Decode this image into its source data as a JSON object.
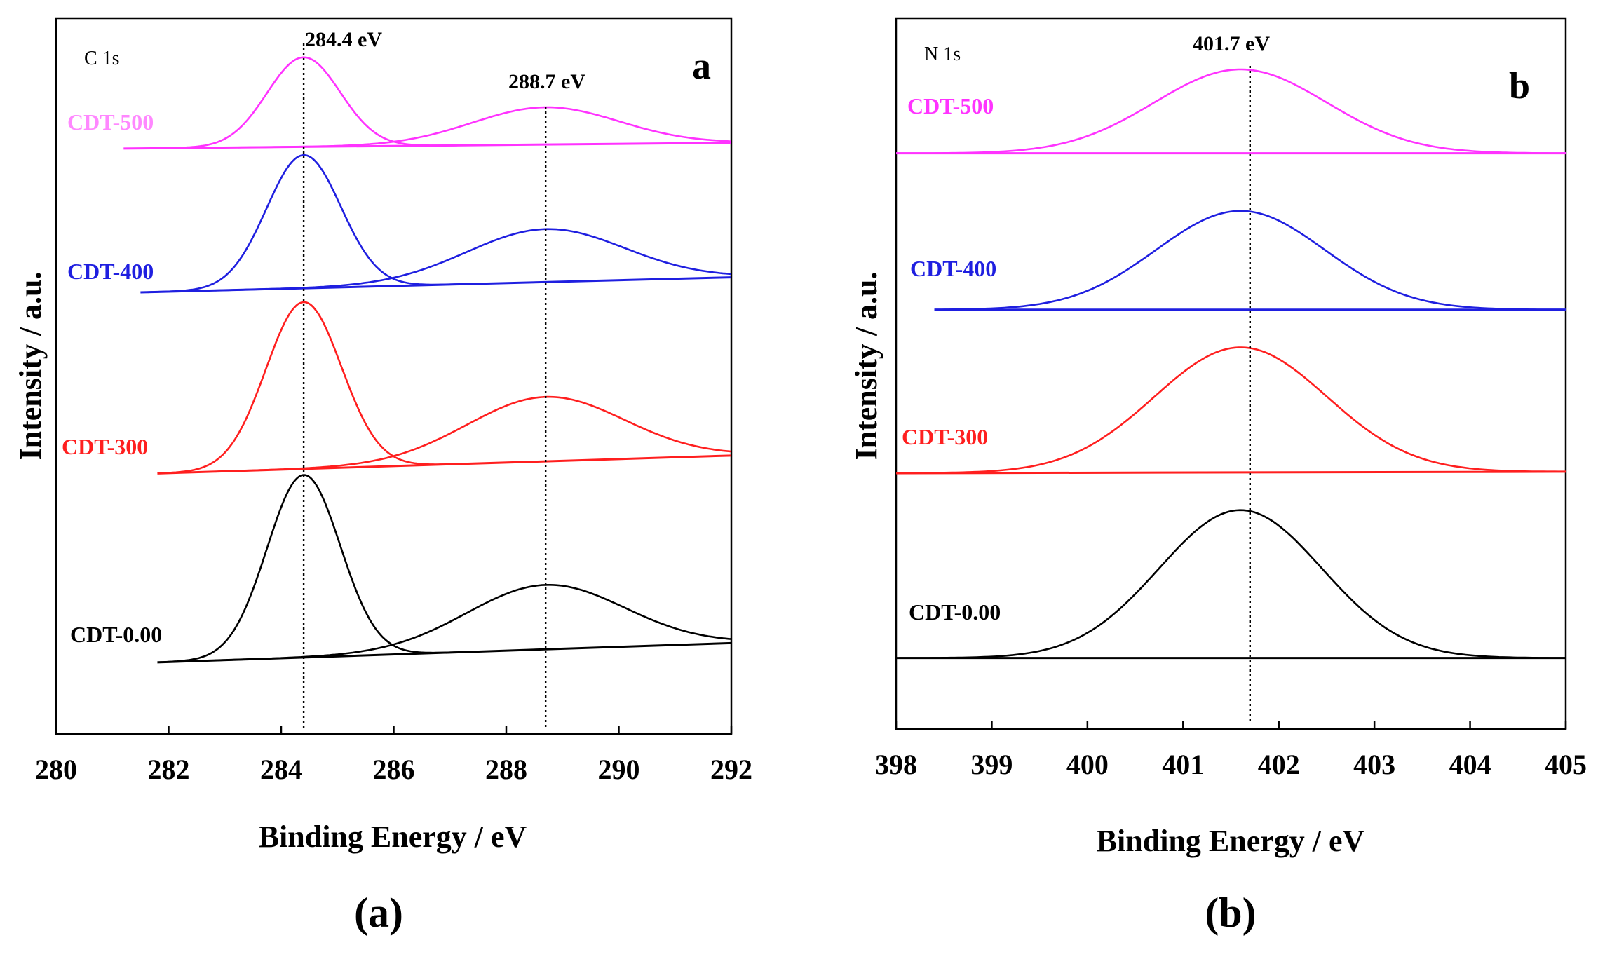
{
  "chart_data": [
    {
      "type": "line",
      "panel": "a",
      "title": "C 1s",
      "panel_letter": "a",
      "caption": "(a)",
      "xlabel": "Binding Energy / eV",
      "ylabel": "Intensity / a.u.",
      "xlim": [
        280,
        292
      ],
      "ylim": [
        0,
        1
      ],
      "xticks": [
        280,
        282,
        284,
        286,
        288,
        290,
        292
      ],
      "peak_markers": [
        {
          "x": 284.4,
          "label": "284.4 eV"
        },
        {
          "x": 288.7,
          "label": "288.7 eV"
        }
      ],
      "series": [
        {
          "name": "CDT-500",
          "color": "#ff33ff",
          "label_color": "#ff88ff",
          "baseline": [
            281.2,
            0.818,
            292,
            0.826
          ],
          "peaks": [
            {
              "center": 284.4,
              "height": 0.125,
              "width": 0.65
            },
            {
              "center": 288.7,
              "height": 0.052,
              "width": 1.3
            }
          ]
        },
        {
          "name": "CDT-400",
          "color": "#1f1fe0",
          "label_color": "#1f1fe0",
          "baseline": [
            281.5,
            0.617,
            292,
            0.638
          ],
          "peaks": [
            {
              "center": 284.4,
              "height": 0.186,
              "width": 0.66
            },
            {
              "center": 288.7,
              "height": 0.074,
              "width": 1.4
            }
          ]
        },
        {
          "name": "CDT-300",
          "color": "#ff1f1f",
          "label_color": "#ff1f1f",
          "baseline": [
            281.8,
            0.364,
            292,
            0.389
          ],
          "peaks": [
            {
              "center": 284.4,
              "height": 0.233,
              "width": 0.67
            },
            {
              "center": 288.7,
              "height": 0.09,
              "width": 1.4
            }
          ]
        },
        {
          "name": "CDT-0.00",
          "color": "#000000",
          "label_color": "#000000",
          "baseline": [
            281.8,
            0.1,
            292,
            0.127
          ],
          "peaks": [
            {
              "center": 284.4,
              "height": 0.255,
              "width": 0.65
            },
            {
              "center": 288.7,
              "height": 0.09,
              "width": 1.4
            }
          ]
        }
      ]
    },
    {
      "type": "line",
      "panel": "b",
      "title": "N 1s",
      "panel_letter": "b",
      "caption": "(b)",
      "xlabel": "Binding Energy / eV",
      "ylabel": "Intensity / a.u.",
      "xlim": [
        398,
        405
      ],
      "ylim": [
        0,
        1
      ],
      "xticks": [
        398,
        399,
        400,
        401,
        402,
        403,
        404,
        405
      ],
      "peak_markers": [
        {
          "x": 401.7,
          "label": "401.7 eV"
        }
      ],
      "series": [
        {
          "name": "CDT-500",
          "color": "#ff33ff",
          "label_color": "#ff33ff",
          "baseline": [
            398,
            0.81,
            405,
            0.81
          ],
          "peaks": [
            {
              "center": 401.6,
              "height": 0.118,
              "width": 0.9
            }
          ]
        },
        {
          "name": "CDT-400",
          "color": "#1f1fe0",
          "label_color": "#1f1fe0",
          "baseline": [
            398.4,
            0.59,
            405,
            0.59
          ],
          "peaks": [
            {
              "center": 401.6,
              "height": 0.139,
              "width": 0.88
            }
          ]
        },
        {
          "name": "CDT-300",
          "color": "#ff1f1f",
          "label_color": "#ff1f1f",
          "baseline": [
            398,
            0.36,
            405,
            0.362
          ],
          "peaks": [
            {
              "center": 401.6,
              "height": 0.176,
              "width": 0.9
            }
          ]
        },
        {
          "name": "CDT-0.00",
          "color": "#000000",
          "label_color": "#000000",
          "baseline": [
            398,
            0.1,
            405,
            0.1
          ],
          "peaks": [
            {
              "center": 401.6,
              "height": 0.208,
              "width": 0.85
            }
          ]
        }
      ]
    }
  ]
}
